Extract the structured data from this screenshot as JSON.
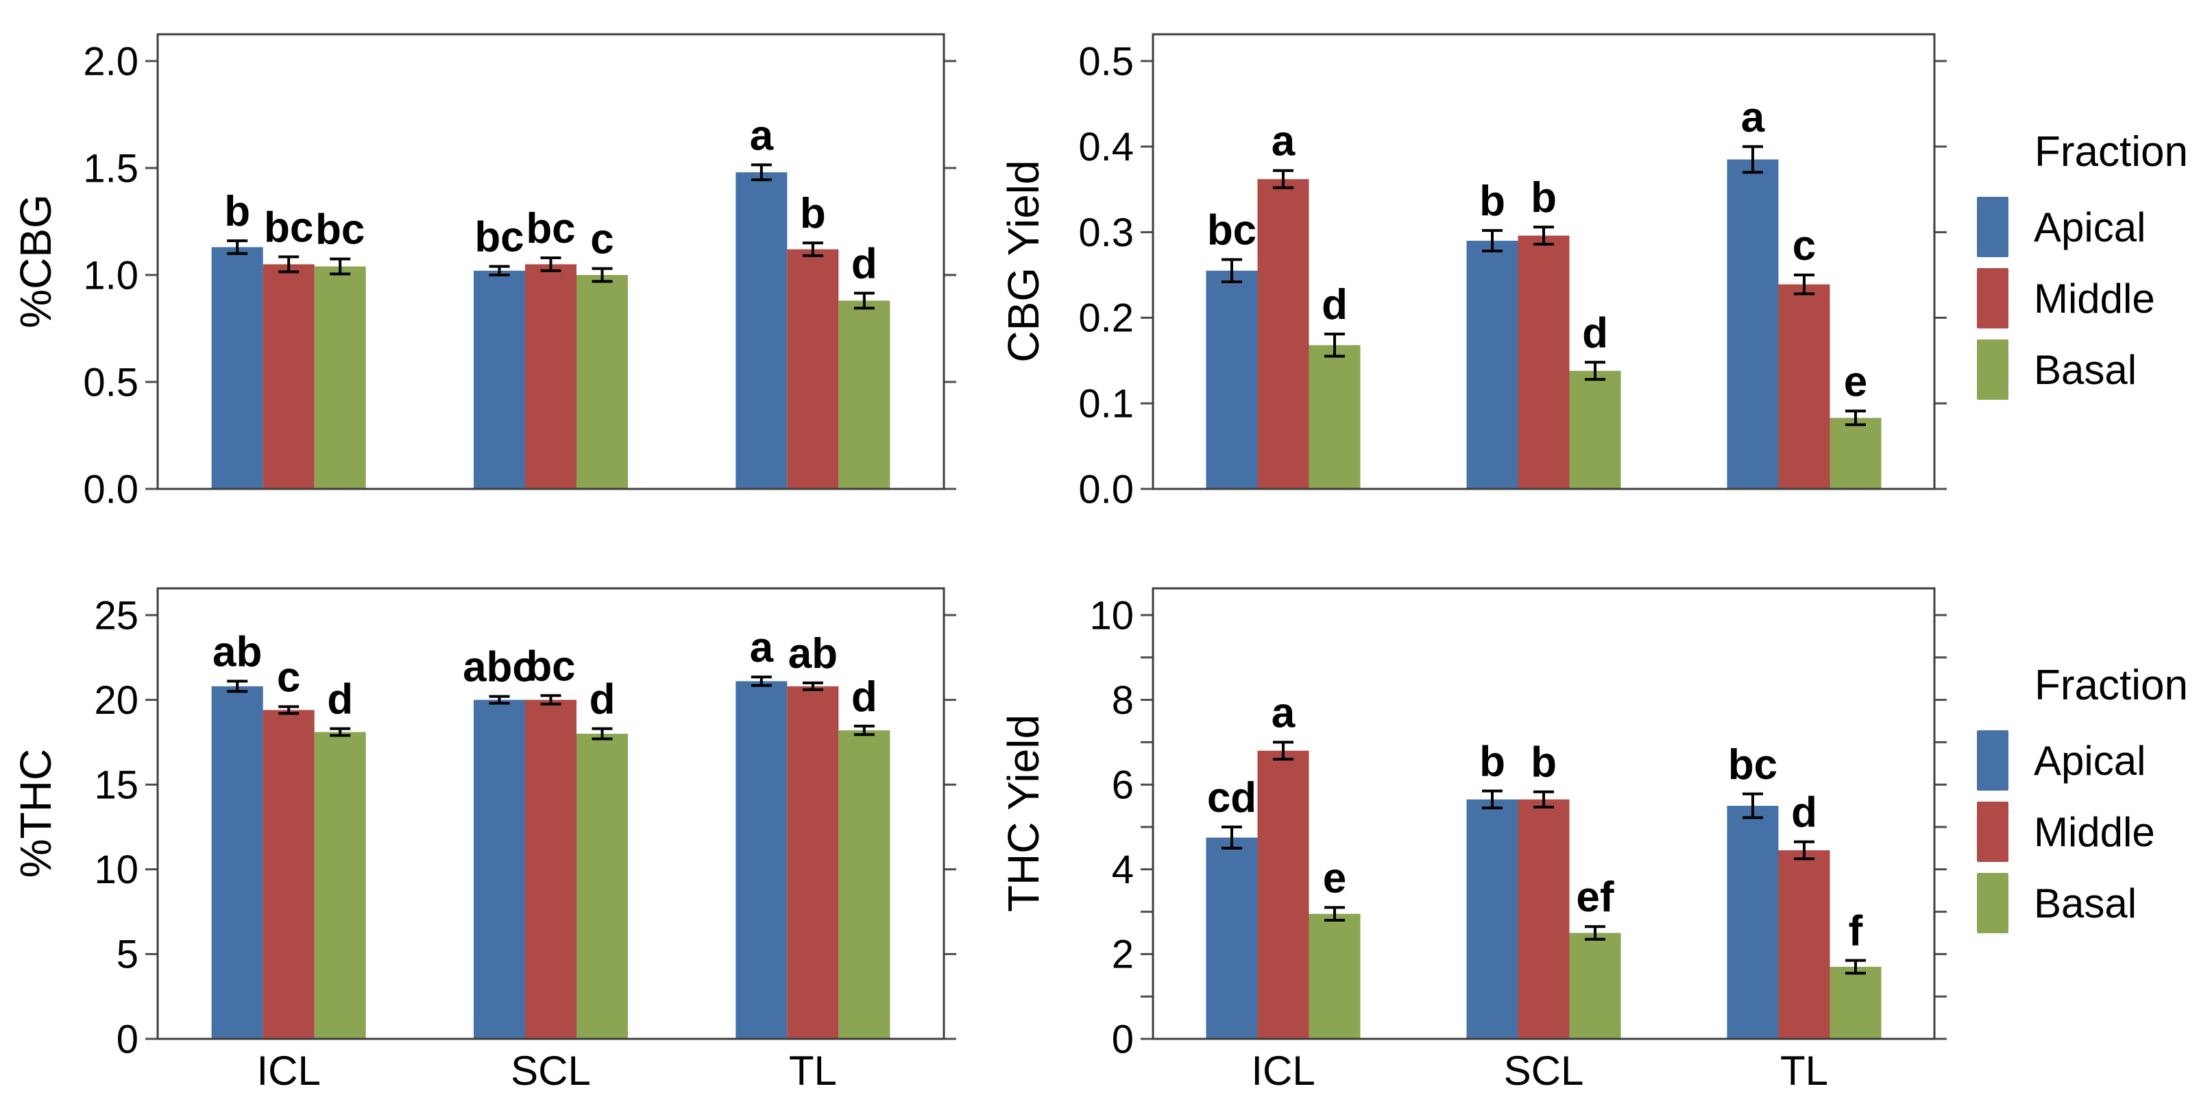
{
  "figure": {
    "background": "#ffffff",
    "axis_color": "#3f3f3f",
    "tick_color": "#4d4d4d",
    "errorbar_color": "#000000",
    "text_color": "#000000"
  },
  "legend": {
    "title": "Fraction",
    "items": [
      {
        "label": "Apical",
        "color": "#4571A6"
      },
      {
        "label": "Middle",
        "color": "#B04A47"
      },
      {
        "label": "Basal",
        "color": "#8BA552"
      }
    ]
  },
  "chart_data": [
    {
      "type": "bar",
      "title": "",
      "xlabel": "",
      "ylabel": "%CBG",
      "categories": [
        "ICL",
        "SCL",
        "TL"
      ],
      "ylim": [
        0,
        2.1
      ],
      "yticks": [
        0,
        0.5,
        1.0,
        1.5,
        2.0
      ],
      "ytick_labels": [
        "0.0",
        "0.5",
        "1.0",
        "1.5",
        "2.0"
      ],
      "grid": false,
      "legend_position": "right",
      "show_xlabels": false,
      "series": [
        {
          "name": "Apical",
          "values": [
            1.13,
            1.02,
            1.48
          ],
          "errors": [
            0.03,
            0.02,
            0.035
          ],
          "letters": [
            "b",
            "bc",
            "a"
          ]
        },
        {
          "name": "Middle",
          "values": [
            1.05,
            1.05,
            1.12
          ],
          "errors": [
            0.035,
            0.03,
            0.03
          ],
          "letters": [
            "bc",
            "bc",
            "b"
          ]
        },
        {
          "name": "Basal",
          "values": [
            1.04,
            1.0,
            0.88
          ],
          "errors": [
            0.035,
            0.03,
            0.035
          ],
          "letters": [
            "bc",
            "c",
            "d"
          ]
        }
      ]
    },
    {
      "type": "bar",
      "title": "",
      "xlabel": "",
      "ylabel": "CBG Yield",
      "categories": [
        "ICL",
        "SCL",
        "TL"
      ],
      "ylim": [
        0,
        0.52
      ],
      "yticks": [
        0,
        0.1,
        0.2,
        0.3,
        0.4,
        0.5
      ],
      "ytick_labels": [
        "0.0",
        "0.1",
        "0.2",
        "0.3",
        "0.4",
        "0.5"
      ],
      "grid": false,
      "legend_position": "right",
      "show_xlabels": false,
      "series": [
        {
          "name": "Apical",
          "values": [
            0.255,
            0.29,
            0.385
          ],
          "errors": [
            0.013,
            0.012,
            0.015
          ],
          "letters": [
            "bc",
            "b",
            "a"
          ]
        },
        {
          "name": "Middle",
          "values": [
            0.362,
            0.296,
            0.239
          ],
          "errors": [
            0.01,
            0.01,
            0.011
          ],
          "letters": [
            "a",
            "b",
            "c"
          ]
        },
        {
          "name": "Basal",
          "values": [
            0.168,
            0.138,
            0.083
          ],
          "errors": [
            0.013,
            0.01,
            0.008
          ],
          "letters": [
            "d",
            "d",
            "e"
          ]
        }
      ]
    },
    {
      "type": "bar",
      "title": "",
      "xlabel": "",
      "ylabel": "%THC",
      "categories": [
        "ICL",
        "SCL",
        "TL"
      ],
      "ylim": [
        0,
        26.5
      ],
      "yticks": [
        0,
        5,
        10,
        15,
        20,
        25
      ],
      "ytick_labels": [
        "0",
        "5",
        "10",
        "15",
        "20",
        "25"
      ],
      "grid": false,
      "legend_position": "none",
      "show_xlabels": true,
      "series": [
        {
          "name": "Apical",
          "values": [
            20.8,
            20.0,
            21.1
          ],
          "errors": [
            0.3,
            0.2,
            0.25
          ],
          "letters": [
            "ab",
            "abc",
            "a"
          ]
        },
        {
          "name": "Middle",
          "values": [
            19.4,
            20.0,
            20.8
          ],
          "errors": [
            0.2,
            0.25,
            0.2
          ],
          "letters": [
            "c",
            "bc",
            "ab"
          ]
        },
        {
          "name": "Basal",
          "values": [
            18.1,
            18.0,
            18.2
          ],
          "errors": [
            0.2,
            0.3,
            0.25
          ],
          "letters": [
            "d",
            "d",
            "d"
          ]
        }
      ]
    },
    {
      "type": "bar",
      "title": "",
      "xlabel": "",
      "ylabel": "THC Yield",
      "categories": [
        "ICL",
        "SCL",
        "TL"
      ],
      "ylim": [
        0,
        10.6
      ],
      "yticks": [
        0,
        1,
        2,
        3,
        4,
        5,
        6,
        7,
        8,
        9,
        10
      ],
      "ytick_labels": [
        "0",
        "",
        "2",
        "",
        "4",
        "",
        "6",
        "",
        "8",
        "",
        "10"
      ],
      "grid": false,
      "legend_position": "right",
      "show_xlabels": true,
      "series": [
        {
          "name": "Apical",
          "values": [
            4.75,
            5.65,
            5.5
          ],
          "errors": [
            0.25,
            0.2,
            0.28
          ],
          "letters": [
            "cd",
            "b",
            "bc"
          ]
        },
        {
          "name": "Middle",
          "values": [
            6.8,
            5.65,
            4.45
          ],
          "errors": [
            0.2,
            0.18,
            0.2
          ],
          "letters": [
            "a",
            "b",
            "d"
          ]
        },
        {
          "name": "Basal",
          "values": [
            2.95,
            2.5,
            1.7
          ],
          "errors": [
            0.15,
            0.15,
            0.15
          ],
          "letters": [
            "e",
            "ef",
            "f"
          ]
        }
      ]
    }
  ]
}
